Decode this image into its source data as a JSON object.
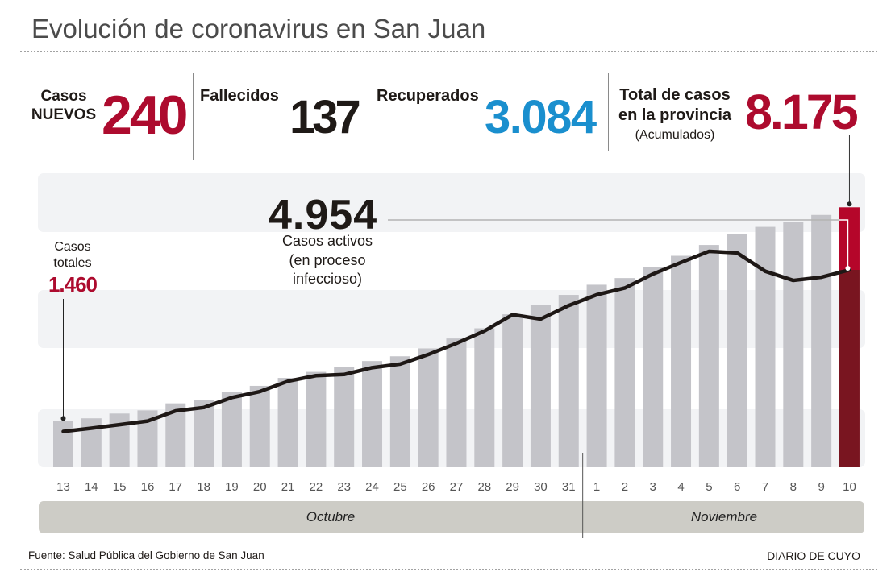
{
  "header": {
    "title": "Evolución de coronavirus en San Juan"
  },
  "stats": {
    "new_cases": {
      "label_line1": "Casos",
      "label_line2": "NUEVOS",
      "value": "240"
    },
    "deaths": {
      "label": "Fallecidos",
      "value": "137"
    },
    "recovered": {
      "label": "Recuperados",
      "value": "3.084"
    },
    "total": {
      "label_line1": "Total de casos",
      "label_line2": "en la provincia",
      "sublabel": "(Acumulados)",
      "value": "8.175"
    }
  },
  "annotations": {
    "total_start": {
      "label_line1": "Casos",
      "label_line2": "totales",
      "value": "1.460"
    },
    "active_end": {
      "value": "4.954",
      "label_line1": "Casos activos",
      "label_line2": "(en proceso",
      "label_line3": "infeccioso)"
    }
  },
  "footer": {
    "source": "Fuente: Salud Pública del Gobierno de San Juan",
    "brand": "DIARIO DE CUYO"
  },
  "colors": {
    "accent_red": "#ad0b2e",
    "highlight_red": "#b5062a",
    "dark_red": "#791520",
    "recovered_blue": "#1a8fce",
    "bar_gray": "#c4c4c9",
    "line": "#1e1816",
    "band": "#f2f3f5",
    "month_band": "#cdccc6",
    "text_dark": "#1f1a17"
  },
  "chart_data": {
    "type": "bar",
    "title": "Evolución de coronavirus en San Juan",
    "xlabel": "",
    "ylabel": "",
    "grid": false,
    "legend": "none",
    "categories": [
      "13",
      "14",
      "15",
      "16",
      "17",
      "18",
      "19",
      "20",
      "21",
      "22",
      "23",
      "24",
      "25",
      "26",
      "27",
      "28",
      "29",
      "30",
      "31",
      "1",
      "2",
      "3",
      "4",
      "5",
      "6",
      "7",
      "8",
      "9",
      "10"
    ],
    "month_groups": [
      {
        "label": "Octubre",
        "first": "13",
        "last": "31"
      },
      {
        "label": "Noviembre",
        "first": "1",
        "last": "10"
      }
    ],
    "series": [
      {
        "name": "Casos totales",
        "type": "bar",
        "values": [
          1460,
          1540,
          1690,
          1790,
          2010,
          2110,
          2360,
          2560,
          2810,
          3000,
          3160,
          3340,
          3490,
          3740,
          4050,
          4370,
          4810,
          5110,
          5420,
          5740,
          5950,
          6300,
          6650,
          6990,
          7330,
          7560,
          7710,
          7935,
          8175
        ]
      },
      {
        "name": "Casos activos",
        "type": "line",
        "values": [
          900,
          980,
          1070,
          1160,
          1415,
          1500,
          1750,
          1900,
          2160,
          2300,
          2330,
          2500,
          2590,
          2830,
          3110,
          3420,
          3830,
          3720,
          4060,
          4330,
          4500,
          4850,
          5140,
          5420,
          5380,
          4920,
          4690,
          4770,
          4954
        ]
      }
    ],
    "highlight": {
      "category": "10",
      "total": 8175,
      "active": 4954
    }
  }
}
